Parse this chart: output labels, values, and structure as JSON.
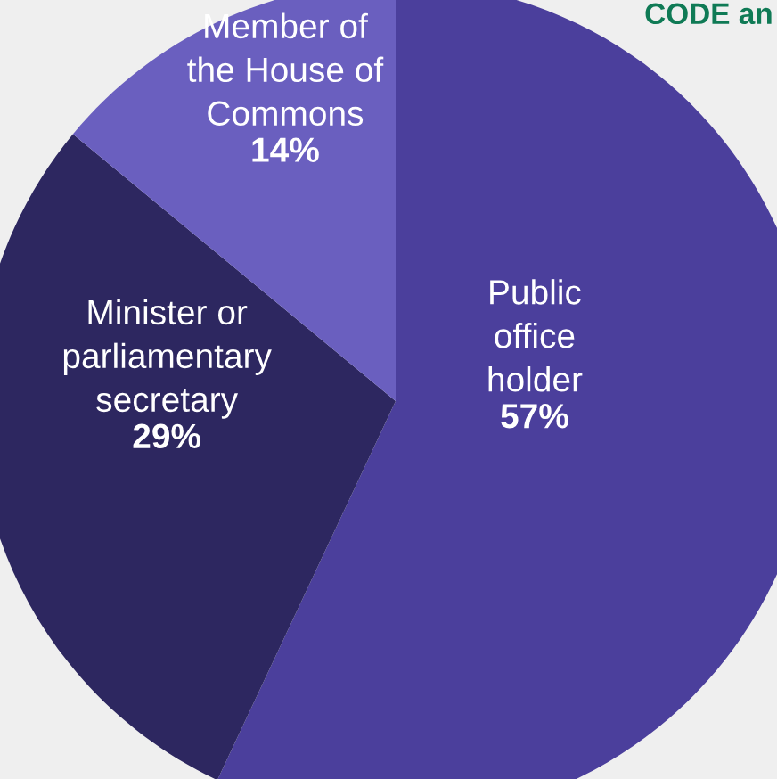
{
  "chart_data": {
    "type": "pie",
    "categories": [
      "Public\noffice\nholder",
      "Minister or\nparliamentary\nsecretary",
      "Member of\nthe House of\nCommons"
    ],
    "values": [
      57,
      29,
      14
    ],
    "value_labels": [
      "57%",
      "29%",
      "14%"
    ],
    "colors": [
      "#4b3f9c",
      "#2d2760",
      "#6a5fbf"
    ],
    "annotations": [
      "CODE an"
    ]
  }
}
